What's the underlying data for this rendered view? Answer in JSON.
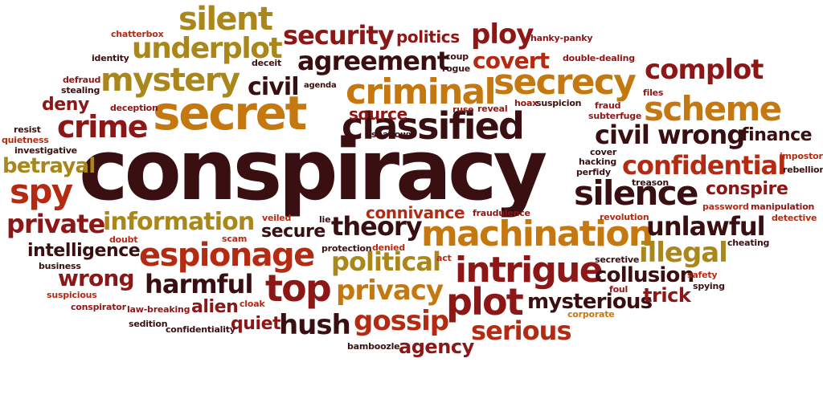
{
  "palette": {
    "near_black": "#3a0f12",
    "dark_red": "#8d1616",
    "red_orange": "#b52a12",
    "orange_gold": "#c4780f",
    "olive_gold": "#a9871b",
    "orange": "#d8610e",
    "maroon": "#5a1515"
  },
  "words": {
    "conspiracy": "conspiracy",
    "secret": "secret",
    "criminal": "criminal",
    "secrecy": "secrecy",
    "classified": "classified",
    "machination": "machination",
    "intrigue": "intrigue",
    "silence": "silence",
    "scheme": "scheme",
    "complot": "complot",
    "confidential": "confidential",
    "espionage": "espionage",
    "information": "information",
    "mystery": "mystery",
    "silent": "silent",
    "underplot": "underplot",
    "security": "security",
    "agreement": "agreement",
    "covert": "covert",
    "ploy": "ploy",
    "crime": "crime",
    "spy": "spy",
    "private": "private",
    "top": "top",
    "plot": "plot",
    "political": "political",
    "privacy": "privacy",
    "gossip": "gossip",
    "serious": "serious",
    "hush": "hush",
    "theory": "theory",
    "unlawful": "unlawful",
    "illegal": "illegal",
    "wrong_right": "wrong",
    "civil_right": "civil",
    "civil_top": "civil",
    "politics": "politics",
    "harmful": "harmful",
    "wrong_left": "wrong",
    "betrayal": "betrayal",
    "intelligence": "intelligence",
    "secure": "secure",
    "connivance": "connivance",
    "collusion": "collusion",
    "mysterious": "mysterious",
    "trick": "trick",
    "conspire": "conspire",
    "finance": "finance",
    "source": "source",
    "agency": "agency",
    "alien": "alien",
    "quiet": "quiet",
    "deny": "deny",
    "chatterbox": "chatterbox",
    "identity": "identity",
    "deceit": "deceit",
    "coup": "coup",
    "rogue": "rogue",
    "hanky_panky": "hanky-panky",
    "double_dealing": "double-dealing",
    "defraud": "defraud",
    "stealing": "stealing",
    "agenda": "agenda",
    "deception": "deception",
    "ruse": "ruse",
    "reveal": "reveal",
    "hoax": "hoax",
    "suspicion": "suspicion",
    "files": "files",
    "fraud": "fraud",
    "subterfuge": "subterfuge",
    "resist": "resist",
    "quietness": "quietness",
    "shadowy": "shadowy",
    "investigative": "investigative",
    "cover": "cover",
    "hacking": "hacking",
    "perfidy": "perfidy",
    "impostor": "impostor",
    "rebellion": "rebellion",
    "treason": "treason",
    "password": "password",
    "manipulation": "manipulation",
    "detective": "detective",
    "veiled": "veiled",
    "lie": "lie",
    "fraudulence": "fraudulence",
    "revolution": "revolution",
    "doubt": "doubt",
    "scam": "scam",
    "cheating": "cheating",
    "business": "business",
    "protection": "protection",
    "denied": "denied",
    "act": "act",
    "secretive": "secretive",
    "safety": "safety",
    "spying": "spying",
    "foul": "foul",
    "suspicious": "suspicious",
    "conspirator": "conspirator",
    "law_breaking": "law-breaking",
    "cloak": "cloak",
    "corporate": "corporate",
    "sedition": "sedition",
    "confidentiality": "confidentiality",
    "bamboozle": "bamboozle"
  }
}
